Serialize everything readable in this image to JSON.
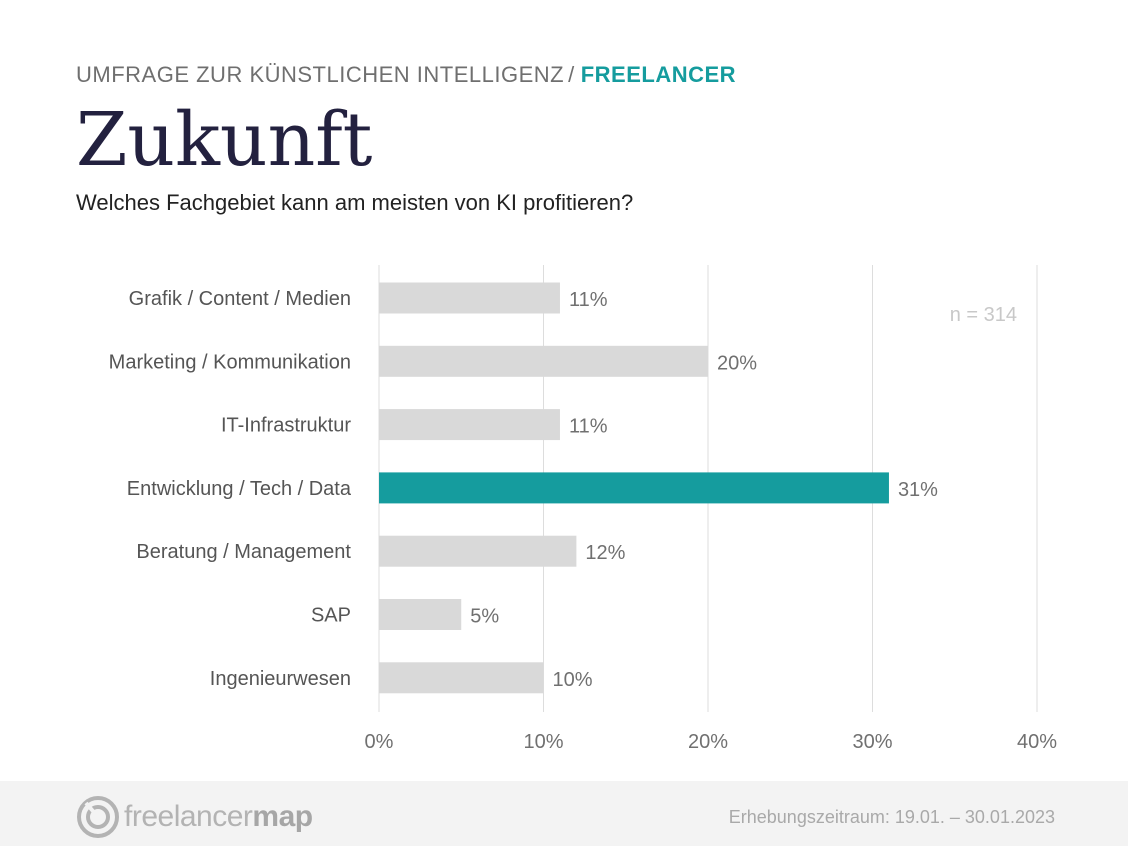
{
  "header": {
    "kicker": "UMFRAGE ZUR KÜNSTLICHEN INTELLIGENZ",
    "kicker_separator": "/",
    "kicker_accent": "FREELANCER",
    "title": "Zukunft",
    "subtitle": "Welches Fachgebiet kann am meisten von KI profitieren?"
  },
  "colors": {
    "accent": "#159c9e",
    "bar_default": "#d9d9d9",
    "title": "#23213f"
  },
  "chart_data": {
    "type": "bar",
    "orientation": "horizontal",
    "categories": [
      "Grafik / Content / Medien",
      "Marketing / Kommunikation",
      "IT-Infrastruktur",
      "Entwicklung / Tech / Data",
      "Beratung / Management",
      "SAP",
      "Ingenieurwesen"
    ],
    "values": [
      11,
      20,
      11,
      31,
      12,
      5,
      10
    ],
    "value_labels": [
      "11%",
      "20%",
      "11%",
      "31%",
      "12%",
      "5%",
      "10%"
    ],
    "highlight_index": 3,
    "xlim": [
      0,
      40
    ],
    "xticks": [
      0,
      10,
      20,
      30,
      40
    ],
    "xtick_labels": [
      "0%",
      "10%",
      "20%",
      "30%",
      "40%"
    ],
    "grid": "vertical",
    "annotation": "n = 314"
  },
  "footer": {
    "logo_text_regular": "freelancer",
    "logo_text_bold": "map",
    "period": "Erhebungszeitraum:  19.01. – 30.01.2023"
  }
}
